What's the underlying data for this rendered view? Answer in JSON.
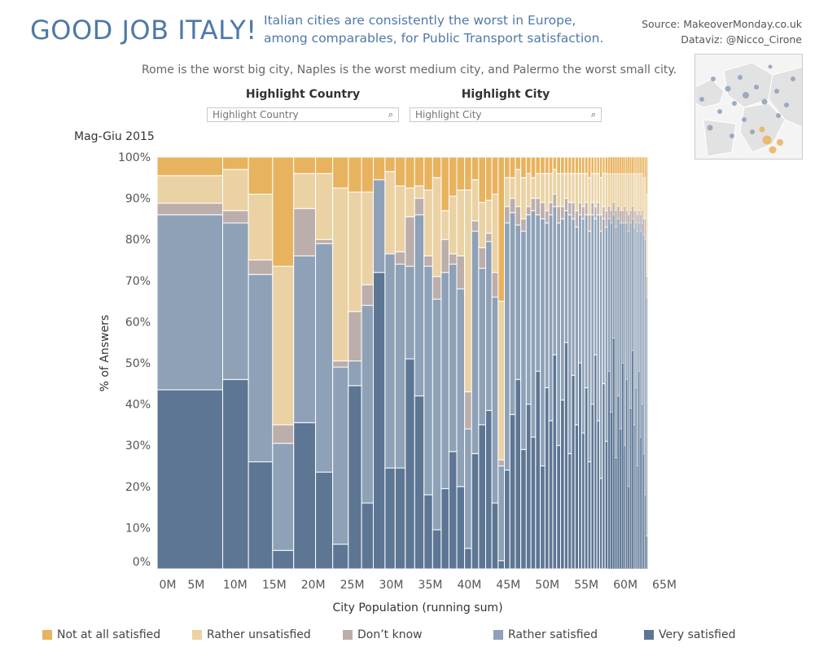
{
  "header": {
    "title": "GOOD JOB ITALY!",
    "subtitle_line1": "Italian cities are consistently the worst in Europe,",
    "subtitle_line2": "among comparables, for Public Transport satisfaction.",
    "source": "Source: MakeoverMonday.co.uk",
    "dataviz": "Dataviz: @Nicco_Cirone",
    "tagline": "Rome is the worst big city, Naples is the worst medium city, and Palermo the worst small city."
  },
  "filters": {
    "country": {
      "label": "Highlight Country",
      "placeholder": "Highlight Country"
    },
    "city": {
      "label": "Highlight City",
      "placeholder": "Highlight City"
    }
  },
  "colors": {
    "not_at_all": "#e8b35e",
    "rather_unsat": "#ebd2a4",
    "dont_know": "#bcaeab",
    "rather_sat": "#8ea1b7",
    "very_sat": "#5d7694",
    "title": "#4e79a7"
  },
  "chart_data": {
    "type": "bar",
    "variant": "stacked-100-marimekko",
    "period_label": "Mag-Giu 2015",
    "xlabel": "City Population (running sum)",
    "ylabel": "% of Answers",
    "xlim": [
      0,
      65
    ],
    "ylim": [
      0,
      100
    ],
    "x_ticks": [
      "0M",
      "5M",
      "10M",
      "15M",
      "20M",
      "25M",
      "30M",
      "35M",
      "40M",
      "45M",
      "50M",
      "55M",
      "60M",
      "65M"
    ],
    "x_tick_values": [
      0,
      5,
      10,
      15,
      20,
      25,
      30,
      35,
      40,
      45,
      50,
      55,
      60,
      65
    ],
    "y_ticks": [
      "0%",
      "10%",
      "20%",
      "30%",
      "40%",
      "50%",
      "60%",
      "70%",
      "80%",
      "90%",
      "100%"
    ],
    "y_tick_values": [
      0,
      10,
      20,
      30,
      40,
      50,
      60,
      70,
      80,
      90,
      100
    ],
    "series_names": [
      "Very satisfied",
      "Rather satisfied",
      "Don't know",
      "Rather unsatisfied",
      "Not at all satisfied"
    ],
    "series_keys": [
      "very_sat",
      "rather_sat",
      "dont_know",
      "rather_unsat",
      "not_at_all"
    ],
    "bars": [
      {
        "width": 8.4,
        "values": [
          43.5,
          42.5,
          2.8,
          6.7,
          4.5
        ]
      },
      {
        "width": 3.3,
        "values": [
          46,
          38,
          3,
          10,
          3
        ]
      },
      {
        "width": 3.1,
        "values": [
          26,
          45.5,
          3.5,
          16,
          9
        ]
      },
      {
        "width": 2.7,
        "values": [
          4.5,
          26,
          4.5,
          38.5,
          26.5
        ]
      },
      {
        "width": 2.8,
        "values": [
          35.5,
          40.5,
          11.5,
          8.5,
          4
        ]
      },
      {
        "width": 2.2,
        "values": [
          23.5,
          55.5,
          1,
          16,
          4
        ]
      },
      {
        "width": 2.0,
        "values": [
          6,
          43,
          1.5,
          42,
          7.5
        ]
      },
      {
        "width": 1.7,
        "values": [
          44.5,
          6,
          12,
          29,
          8.5
        ]
      },
      {
        "width": 1.5,
        "values": [
          16,
          48,
          5,
          22.5,
          8.5
        ]
      },
      {
        "width": 1.5,
        "values": [
          72,
          22.5,
          0,
          0,
          5.5
        ]
      },
      {
        "width": 1.3,
        "values": [
          24.5,
          52,
          0,
          20,
          3.5
        ]
      },
      {
        "width": 1.3,
        "values": [
          24.5,
          49.5,
          3,
          16,
          7
        ]
      },
      {
        "width": 1.2,
        "values": [
          51,
          22.5,
          12,
          7,
          7.5
        ]
      },
      {
        "width": 1.2,
        "values": [
          42,
          44,
          4,
          3,
          7
        ]
      },
      {
        "width": 1.1,
        "values": [
          18,
          55.5,
          2.5,
          16,
          8
        ]
      },
      {
        "width": 1.1,
        "values": [
          9.5,
          56,
          5.5,
          24,
          5
        ]
      },
      {
        "width": 1.0,
        "values": [
          19.5,
          52.5,
          8,
          7,
          13
        ]
      },
      {
        "width": 1.0,
        "values": [
          28.5,
          45.5,
          2.5,
          14,
          9.5
        ]
      },
      {
        "width": 1.0,
        "values": [
          20,
          48,
          8,
          16,
          8
        ]
      },
      {
        "width": 0.9,
        "values": [
          5,
          29,
          9,
          49,
          8
        ]
      },
      {
        "width": 0.9,
        "values": [
          28,
          54,
          2.5,
          10,
          5.5
        ]
      },
      {
        "width": 0.9,
        "values": [
          35,
          38,
          5,
          11,
          11
        ]
      },
      {
        "width": 0.8,
        "values": [
          38.5,
          41,
          2,
          8,
          10.5
        ]
      },
      {
        "width": 0.8,
        "values": [
          16,
          50,
          6,
          19,
          9
        ]
      },
      {
        "width": 0.8,
        "values": [
          2,
          23,
          1.5,
          38.5,
          35
        ]
      },
      {
        "width": 0.7,
        "values": [
          24,
          60,
          4,
          7,
          5
        ]
      },
      {
        "width": 0.7,
        "values": [
          37.5,
          49,
          3.5,
          5,
          5
        ]
      },
      {
        "width": 0.7,
        "values": [
          46,
          37.5,
          4.5,
          9,
          3
        ]
      },
      {
        "width": 0.7,
        "values": [
          29,
          53,
          3,
          10,
          5
        ]
      },
      {
        "width": 0.6,
        "values": [
          40,
          46,
          2,
          8,
          4
        ]
      },
      {
        "width": 0.6,
        "values": [
          32,
          55,
          3,
          5,
          5
        ]
      },
      {
        "width": 0.6,
        "values": [
          48,
          38,
          4,
          6,
          4
        ]
      },
      {
        "width": 0.6,
        "values": [
          25,
          60,
          4,
          7,
          4
        ]
      },
      {
        "width": 0.5,
        "values": [
          44,
          40,
          3,
          9,
          4
        ]
      },
      {
        "width": 0.5,
        "values": [
          36,
          50,
          3,
          7,
          4
        ]
      },
      {
        "width": 0.5,
        "values": [
          52,
          36,
          3,
          6,
          3
        ]
      },
      {
        "width": 0.5,
        "values": [
          30,
          54,
          4,
          8,
          4
        ]
      },
      {
        "width": 0.5,
        "values": [
          41,
          44,
          3,
          8,
          4
        ]
      },
      {
        "width": 0.45,
        "values": [
          55,
          32,
          3,
          6,
          4
        ]
      },
      {
        "width": 0.45,
        "values": [
          28,
          58,
          3,
          7,
          4
        ]
      },
      {
        "width": 0.45,
        "values": [
          47,
          38,
          4,
          7,
          4
        ]
      },
      {
        "width": 0.45,
        "values": [
          35,
          48,
          4,
          9,
          4
        ]
      },
      {
        "width": 0.4,
        "values": [
          50,
          36,
          3,
          7,
          4
        ]
      },
      {
        "width": 0.4,
        "values": [
          33,
          52,
          3,
          8,
          4
        ]
      },
      {
        "width": 0.4,
        "values": [
          44,
          42,
          3,
          7,
          4
        ]
      },
      {
        "width": 0.4,
        "values": [
          26,
          56,
          4,
          9,
          5
        ]
      },
      {
        "width": 0.4,
        "values": [
          40,
          46,
          3,
          7,
          4
        ]
      },
      {
        "width": 0.35,
        "values": [
          52,
          33,
          3,
          8,
          4
        ]
      },
      {
        "width": 0.35,
        "values": [
          36,
          50,
          3,
          7,
          4
        ]
      },
      {
        "width": 0.35,
        "values": [
          22,
          60,
          4,
          9,
          5
        ]
      },
      {
        "width": 0.35,
        "values": [
          45,
          40,
          3,
          8,
          4
        ]
      },
      {
        "width": 0.35,
        "values": [
          31,
          52,
          4,
          9,
          4
        ]
      },
      {
        "width": 0.3,
        "values": [
          48,
          37,
          3,
          8,
          4
        ]
      },
      {
        "width": 0.3,
        "values": [
          38,
          46,
          3,
          9,
          4
        ]
      },
      {
        "width": 0.3,
        "values": [
          56,
          30,
          3,
          7,
          4
        ]
      },
      {
        "width": 0.3,
        "values": [
          27,
          56,
          4,
          9,
          4
        ]
      },
      {
        "width": 0.3,
        "values": [
          42,
          43,
          3,
          8,
          4
        ]
      },
      {
        "width": 0.3,
        "values": [
          34,
          50,
          3,
          9,
          4
        ]
      },
      {
        "width": 0.25,
        "values": [
          50,
          34,
          3,
          9,
          4
        ]
      },
      {
        "width": 0.25,
        "values": [
          30,
          54,
          4,
          8,
          4
        ]
      },
      {
        "width": 0.25,
        "values": [
          46,
          38,
          3,
          9,
          4
        ]
      },
      {
        "width": 0.25,
        "values": [
          20,
          62,
          4,
          10,
          4
        ]
      },
      {
        "width": 0.25,
        "values": [
          39,
          45,
          3,
          9,
          4
        ]
      },
      {
        "width": 0.25,
        "values": [
          53,
          32,
          3,
          8,
          4
        ]
      },
      {
        "width": 0.2,
        "values": [
          35,
          48,
          4,
          9,
          4
        ]
      },
      {
        "width": 0.2,
        "values": [
          44,
          40,
          3,
          9,
          4
        ]
      },
      {
        "width": 0.2,
        "values": [
          25,
          57,
          4,
          10,
          4
        ]
      },
      {
        "width": 0.2,
        "values": [
          48,
          36,
          3,
          9,
          4
        ]
      },
      {
        "width": 0.2,
        "values": [
          32,
          50,
          4,
          10,
          4
        ]
      },
      {
        "width": 0.2,
        "values": [
          40,
          44,
          3,
          9,
          4
        ]
      },
      {
        "width": 0.2,
        "values": [
          28,
          53,
          4,
          10,
          5
        ]
      },
      {
        "width": 0.2,
        "values": [
          18,
          62,
          5,
          10,
          5
        ]
      },
      {
        "width": 0.2,
        "values": [
          8,
          58,
          5,
          20,
          9
        ]
      }
    ],
    "legend_placement": "bottom",
    "grid": false
  },
  "legend": [
    {
      "key": "not_at_all",
      "label": "Not at all satisfied"
    },
    {
      "key": "rather_unsat",
      "label": "Rather unsatisfied"
    },
    {
      "key": "dont_know",
      "label": "Don’t know"
    },
    {
      "key": "rather_sat",
      "label": "Rather satisfied"
    },
    {
      "key": "very_sat",
      "label": "Very satisfied"
    }
  ]
}
